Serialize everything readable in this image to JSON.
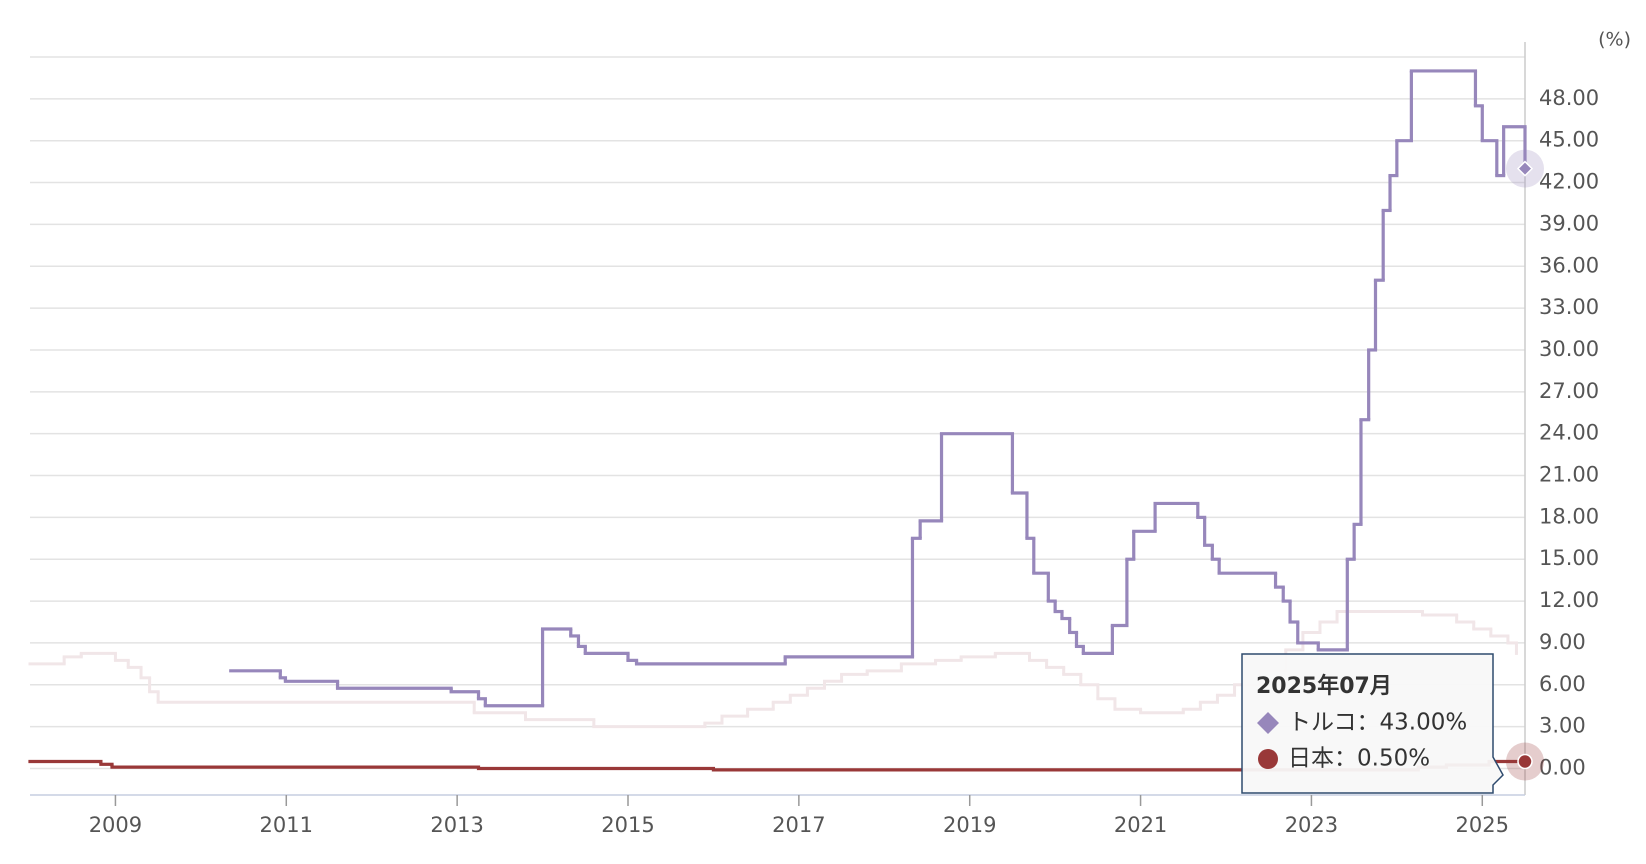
{
  "chart_data": {
    "type": "step-line",
    "y_unit": "(%)",
    "xlim": [
      2008,
      2025.5
    ],
    "xticks": [
      2009,
      2011,
      2013,
      2015,
      2017,
      2019,
      2021,
      2023,
      2025
    ],
    "ylim": [
      -1.9,
      51
    ],
    "yticks": [
      {
        "value": 0,
        "label": "0.00"
      },
      {
        "value": 3,
        "label": "3.00"
      },
      {
        "value": 6,
        "label": "6.00"
      },
      {
        "value": 9,
        "label": "9.00"
      },
      {
        "value": 12,
        "label": "12.00"
      },
      {
        "value": 15,
        "label": "15.00"
      },
      {
        "value": 18,
        "label": "18.00"
      },
      {
        "value": 21,
        "label": "21.00"
      },
      {
        "value": 24,
        "label": "24.00"
      },
      {
        "value": 27,
        "label": "27.00"
      },
      {
        "value": 30,
        "label": "30.00"
      },
      {
        "value": 33,
        "label": "33.00"
      },
      {
        "value": 36,
        "label": "36.00"
      },
      {
        "value": 39,
        "label": "39.00"
      },
      {
        "value": 42,
        "label": "42.00"
      },
      {
        "value": 45,
        "label": "45.00"
      },
      {
        "value": 48,
        "label": "48.00"
      }
    ],
    "grid": true,
    "series": [
      {
        "color": "#f1e6e8",
        "x": [
          2008,
          2008.4,
          2008.6,
          2009,
          2009.15,
          2009.3,
          2009.4,
          2009.5,
          2013.2,
          2013.8,
          2014.6,
          2015.9,
          2016.1,
          2016.4,
          2016.7,
          2016.9,
          2017.1,
          2017.3,
          2017.5,
          2017.8,
          2018.2,
          2018.6,
          2018.9,
          2019.3,
          2019.7,
          2019.9,
          2020.1,
          2020.3,
          2020.5,
          2020.7,
          2021.0,
          2021.5,
          2021.7,
          2021.9,
          2022.1,
          2022.4,
          2022.7,
          2022.9,
          2023.1,
          2023.3,
          2024.3,
          2024.7,
          2024.9,
          2025.1,
          2025.3,
          2025.4
        ],
        "values": [
          7.5,
          8.0,
          8.25,
          7.75,
          7.25,
          6.5,
          5.5,
          4.75,
          4.0,
          3.5,
          3.0,
          3.25,
          3.75,
          4.25,
          4.75,
          5.25,
          5.75,
          6.25,
          6.75,
          7.0,
          7.5,
          7.75,
          8.0,
          8.25,
          7.75,
          7.25,
          6.75,
          6.0,
          5.0,
          4.25,
          4.0,
          4.25,
          4.75,
          5.25,
          6.0,
          7.0,
          8.5,
          9.75,
          10.5,
          11.25,
          11.0,
          10.5,
          10.0,
          9.5,
          9.0,
          8.25
        ]
      },
      {
        "name": "トルコ",
        "color": "#9787bb",
        "x": [
          2010.35,
          2010.93,
          2010.99,
          2011.6,
          2012.93,
          2013.25,
          2013.33,
          2014.0,
          2014.33,
          2014.42,
          2014.5,
          2015.0,
          2015.1,
          2016.84,
          2018.33,
          2018.42,
          2018.67,
          2019.5,
          2019.67,
          2019.75,
          2019.92,
          2020.0,
          2020.08,
          2020.17,
          2020.25,
          2020.33,
          2020.67,
          2020.84,
          2020.92,
          2021.17,
          2021.67,
          2021.75,
          2021.84,
          2021.92,
          2022.58,
          2022.67,
          2022.75,
          2022.84,
          2023.08,
          2023.42,
          2023.5,
          2023.58,
          2023.67,
          2023.75,
          2023.84,
          2023.92,
          2024.0,
          2024.17,
          2024.92,
          2025.0,
          2025.17,
          2025.25,
          2025.5
        ],
        "values": [
          7.0,
          6.5,
          6.25,
          5.75,
          5.5,
          5.0,
          4.5,
          10.0,
          9.5,
          8.75,
          8.25,
          7.75,
          7.5,
          8.0,
          16.5,
          17.75,
          24.0,
          19.75,
          16.5,
          14.0,
          12.0,
          11.25,
          10.75,
          9.75,
          8.75,
          8.25,
          10.25,
          15.0,
          17.0,
          19.0,
          18.0,
          16.0,
          15.0,
          14.0,
          13.0,
          12.0,
          10.5,
          9.0,
          8.5,
          15.0,
          17.5,
          25.0,
          30.0,
          35.0,
          40.0,
          42.5,
          45.0,
          50.0,
          47.5,
          45.0,
          42.5,
          46.0,
          43.0
        ]
      },
      {
        "name": "日本",
        "color": "#993838",
        "x": [
          2008,
          2008.83,
          2008.96,
          2013.25,
          2016.0,
          2024.25,
          2024.58,
          2025.08,
          2025.5
        ],
        "values": [
          0.5,
          0.3,
          0.1,
          0.0,
          -0.1,
          0.1,
          0.25,
          0.5,
          0.5
        ]
      }
    ],
    "tooltip": {
      "title": "2025年07月",
      "rows": [
        "トルコ：43.00%",
        "日本：0.50%"
      ]
    }
  }
}
